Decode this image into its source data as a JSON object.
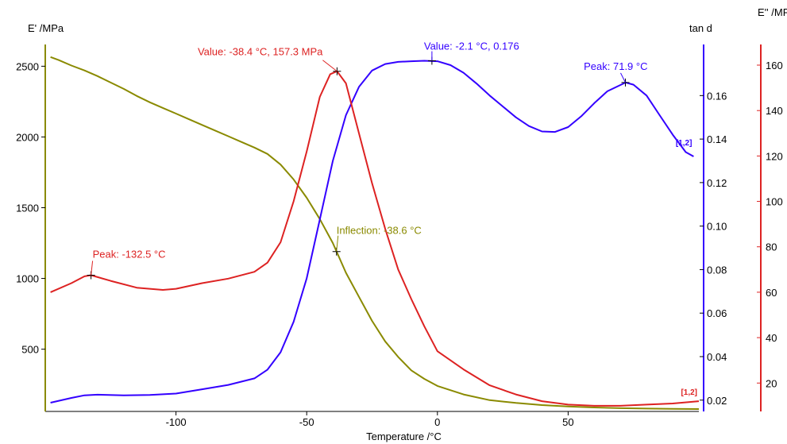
{
  "chart_data": {
    "type": "line",
    "title": "",
    "xlabel": "Temperature /°C",
    "xlim": [
      -150,
      100
    ],
    "x_ticks": [
      -100,
      -50,
      0,
      50
    ],
    "axes": {
      "left": {
        "label": "E' /MPa",
        "ylim": [
          60,
          2620
        ],
        "ticks": [
          500,
          1000,
          1500,
          2000,
          2500
        ],
        "color": "#8a8a00"
      },
      "right1": {
        "label": "tan d",
        "ylim": [
          0.0148,
          0.1813
        ],
        "ticks": [
          0.02,
          0.04,
          0.06,
          0.08,
          0.1,
          0.12,
          0.14,
          0.16
        ],
        "color": "#3300ff"
      },
      "right2": {
        "label": "E'' /MPa",
        "ylim": [
          7.5,
          167
        ],
        "ticks": [
          20,
          40,
          60,
          80,
          100,
          120,
          140,
          160
        ],
        "color": "#dd2222"
      }
    },
    "series": [
      {
        "axis": "left",
        "color": "#8a8a00",
        "points": [
          [
            -148,
            2565
          ],
          [
            -145,
            2545
          ],
          [
            -140,
            2505
          ],
          [
            -135,
            2470
          ],
          [
            -130,
            2430
          ],
          [
            -125,
            2385
          ],
          [
            -120,
            2340
          ],
          [
            -115,
            2290
          ],
          [
            -110,
            2245
          ],
          [
            -105,
            2205
          ],
          [
            -100,
            2165
          ],
          [
            -95,
            2125
          ],
          [
            -90,
            2085
          ],
          [
            -85,
            2045
          ],
          [
            -80,
            2005
          ],
          [
            -75,
            1965
          ],
          [
            -70,
            1925
          ],
          [
            -65,
            1880
          ],
          [
            -60,
            1805
          ],
          [
            -55,
            1700
          ],
          [
            -50,
            1570
          ],
          [
            -45,
            1420
          ],
          [
            -40,
            1250
          ],
          [
            -35,
            1040
          ],
          [
            -30,
            870
          ],
          [
            -25,
            700
          ],
          [
            -20,
            555
          ],
          [
            -15,
            445
          ],
          [
            -10,
            350
          ],
          [
            -5,
            290
          ],
          [
            0,
            240
          ],
          [
            10,
            180
          ],
          [
            20,
            140
          ],
          [
            30,
            120
          ],
          [
            40,
            105
          ],
          [
            50,
            95
          ],
          [
            60,
            88
          ],
          [
            70,
            83
          ],
          [
            80,
            80
          ],
          [
            90,
            78
          ],
          [
            100,
            77
          ]
        ]
      },
      {
        "axis": "right1",
        "color": "#3300ff",
        "points": [
          [
            -148,
            0.0188
          ],
          [
            -140,
            0.021
          ],
          [
            -135,
            0.0222
          ],
          [
            -130,
            0.0225
          ],
          [
            -120,
            0.0222
          ],
          [
            -110,
            0.0224
          ],
          [
            -100,
            0.023
          ],
          [
            -90,
            0.025
          ],
          [
            -80,
            0.027
          ],
          [
            -70,
            0.03
          ],
          [
            -65,
            0.034
          ],
          [
            -60,
            0.042
          ],
          [
            -55,
            0.056
          ],
          [
            -50,
            0.076
          ],
          [
            -45,
            0.103
          ],
          [
            -40,
            0.13
          ],
          [
            -35,
            0.151
          ],
          [
            -30,
            0.164
          ],
          [
            -25,
            0.1715
          ],
          [
            -20,
            0.1745
          ],
          [
            -15,
            0.1755
          ],
          [
            -10,
            0.1758
          ],
          [
            -5,
            0.176
          ],
          [
            0,
            0.1758
          ],
          [
            5,
            0.174
          ],
          [
            10,
            0.1705
          ],
          [
            15,
            0.1655
          ],
          [
            20,
            0.16
          ],
          [
            25,
            0.155
          ],
          [
            30,
            0.15
          ],
          [
            35,
            0.146
          ],
          [
            40,
            0.1435
          ],
          [
            45,
            0.1433
          ],
          [
            50,
            0.1455
          ],
          [
            55,
            0.1505
          ],
          [
            60,
            0.1565
          ],
          [
            65,
            0.162
          ],
          [
            72,
            0.166
          ],
          [
            75,
            0.165
          ],
          [
            80,
            0.16
          ],
          [
            85,
            0.151
          ],
          [
            90,
            0.142
          ],
          [
            95,
            0.134
          ],
          [
            98,
            0.132
          ]
        ]
      },
      {
        "axis": "right2",
        "color": "#dd2222",
        "points": [
          [
            -148,
            60
          ],
          [
            -140,
            64
          ],
          [
            -135,
            67
          ],
          [
            -132.5,
            67.5
          ],
          [
            -125,
            65
          ],
          [
            -115,
            62
          ],
          [
            -105,
            61
          ],
          [
            -100,
            61.5
          ],
          [
            -90,
            64
          ],
          [
            -80,
            66
          ],
          [
            -70,
            69
          ],
          [
            -65,
            73
          ],
          [
            -60,
            82
          ],
          [
            -55,
            100
          ],
          [
            -50,
            122
          ],
          [
            -45,
            146
          ],
          [
            -41,
            156
          ],
          [
            -38.4,
            157.3
          ],
          [
            -35,
            152
          ],
          [
            -30,
            130
          ],
          [
            -25,
            108
          ],
          [
            -20,
            88
          ],
          [
            -15,
            70
          ],
          [
            -10,
            57
          ],
          [
            -5,
            45
          ],
          [
            0,
            34
          ],
          [
            10,
            26
          ],
          [
            20,
            19
          ],
          [
            30,
            15
          ],
          [
            40,
            12
          ],
          [
            50,
            10.5
          ],
          [
            60,
            10
          ],
          [
            70,
            10
          ],
          [
            80,
            10.5
          ],
          [
            90,
            11
          ],
          [
            100,
            12
          ]
        ]
      }
    ],
    "annotations": [
      {
        "text": "Value: -38.4 °C, 157.3 MPa",
        "axis": "right2",
        "x": -38.4,
        "y": 157.3,
        "color": "#dd2222"
      },
      {
        "text": "Value: -2.1 °C, 0.176",
        "axis": "right1",
        "x": -2.1,
        "y": 0.176,
        "color": "#3300ff"
      },
      {
        "text": "Peak: 71.9 °C",
        "axis": "right1",
        "x": 71.9,
        "y": 0.166,
        "color": "#3300ff"
      },
      {
        "text": "Inflection: -38.6 °C",
        "axis": "left",
        "x": -38.6,
        "y": 1190,
        "color": "#8a8a00"
      },
      {
        "text": "Peak: -132.5 °C",
        "axis": "right2",
        "x": -132.5,
        "y": 67.5,
        "color": "#dd2222"
      }
    ],
    "end_markers": [
      {
        "text": "[1,2]",
        "axis": "right1",
        "x": 98,
        "y": 0.132,
        "color": "#3300ff"
      },
      {
        "text": "[1,2]",
        "axis": "right2",
        "x": 100,
        "y": 12,
        "color": "#dd2222"
      }
    ],
    "grid": false,
    "legend": "none"
  }
}
